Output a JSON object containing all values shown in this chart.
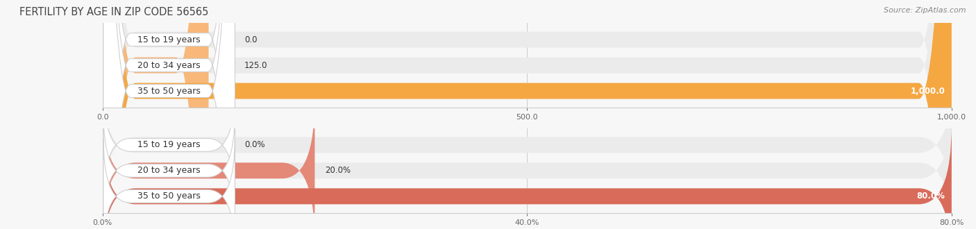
{
  "title": "FERTILITY BY AGE IN ZIP CODE 56565",
  "source": "Source: ZipAtlas.com",
  "top_chart": {
    "categories": [
      "15 to 19 years",
      "20 to 34 years",
      "35 to 50 years"
    ],
    "values": [
      0.0,
      125.0,
      1000.0
    ],
    "xlim": [
      0,
      1000.0
    ],
    "xticks": [
      0.0,
      500.0,
      1000.0
    ],
    "xtick_labels": [
      "0.0",
      "500.0",
      "1,000.0"
    ],
    "bar_colors": [
      "#f7c9a3",
      "#f7b87a",
      "#f5a742"
    ],
    "bar_bg_color": "#ebebeb",
    "value_labels": [
      "0.0",
      "125.0",
      "1,000.0"
    ],
    "bar_height": 0.62
  },
  "bottom_chart": {
    "categories": [
      "15 to 19 years",
      "20 to 34 years",
      "35 to 50 years"
    ],
    "values": [
      0.0,
      20.0,
      80.0
    ],
    "xlim": [
      0,
      80.0
    ],
    "xticks": [
      0.0,
      40.0,
      80.0
    ],
    "xtick_labels": [
      "0.0%",
      "40.0%",
      "80.0%"
    ],
    "bar_colors": [
      "#eeaaa0",
      "#e48878",
      "#d96b5a"
    ],
    "bar_bg_color": "#ebebeb",
    "value_labels": [
      "0.0%",
      "20.0%",
      "80.0%"
    ],
    "bar_height": 0.62
  },
  "background_color": "#f7f7f7",
  "title_fontsize": 10.5,
  "source_fontsize": 8,
  "label_fontsize": 9,
  "value_fontsize": 8.5,
  "tick_fontsize": 8,
  "fig_width": 14.06,
  "fig_height": 3.3
}
